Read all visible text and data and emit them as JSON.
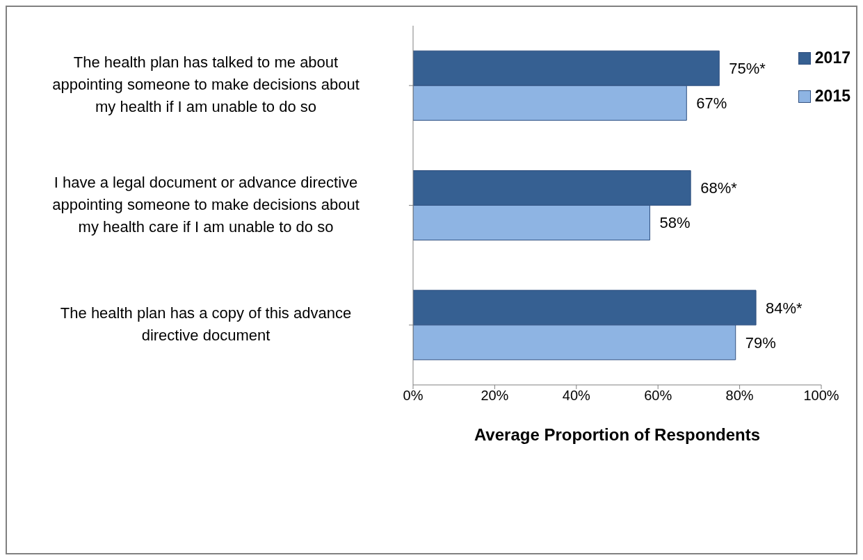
{
  "chart_data": {
    "type": "bar",
    "orientation": "horizontal",
    "xlabel": "Average Proportion of Respondents",
    "categories": [
      "The health plan has talked to me about appointing someone to make decisions about my health if I am unable to do so",
      "I have a legal document or advance directive appointing someone to make decisions about my health care if I am unable to do so",
      "The health plan has a copy of this advance directive document"
    ],
    "series": [
      {
        "name": "2017",
        "color": "#366092",
        "values": [
          75,
          68,
          84
        ],
        "value_labels": [
          "75%*",
          "68%*",
          "84%*"
        ]
      },
      {
        "name": "2015",
        "color": "#8eb4e3",
        "values": [
          67,
          58,
          79
        ],
        "value_labels": [
          "67%",
          "58%",
          "79%"
        ]
      }
    ],
    "xlim": [
      0,
      100
    ],
    "xticks": [
      {
        "value": 0,
        "label": "0%"
      },
      {
        "value": 20,
        "label": "20%"
      },
      {
        "value": 40,
        "label": "40%"
      },
      {
        "value": 60,
        "label": "60%"
      },
      {
        "value": 80,
        "label": "80%"
      },
      {
        "value": 100,
        "label": "100%"
      }
    ],
    "legend": "top right"
  }
}
